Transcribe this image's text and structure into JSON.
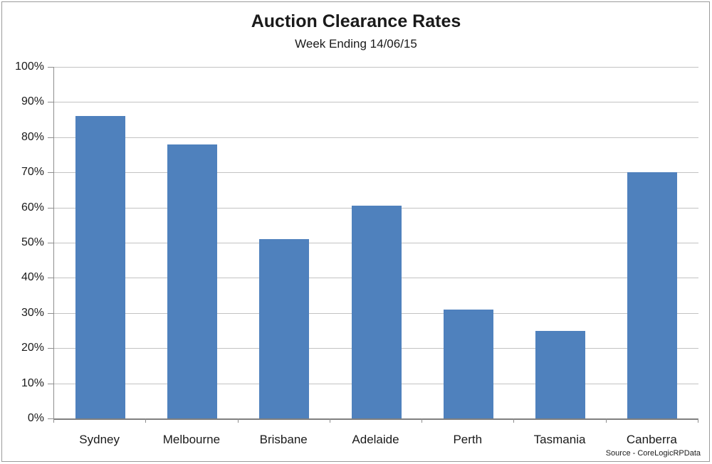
{
  "chart_data": {
    "type": "bar",
    "title": "Auction Clearance Rates",
    "subtitle": "Week Ending 14/06/15",
    "categories": [
      "Sydney",
      "Melbourne",
      "Brisbane",
      "Adelaide",
      "Perth",
      "Tasmania",
      "Canberra"
    ],
    "values": [
      86,
      78,
      51,
      60.5,
      31,
      25,
      70
    ],
    "xlabel": "",
    "ylabel": "",
    "ylim": [
      0,
      100
    ],
    "ytick_step": 10,
    "ytick_labels": [
      "0%",
      "10%",
      "20%",
      "30%",
      "40%",
      "50%",
      "60%",
      "70%",
      "80%",
      "90%",
      "100%"
    ],
    "grid": true,
    "legend": false,
    "bar_color": "#4F81BD",
    "source": "Source - CoreLogicRPData"
  }
}
